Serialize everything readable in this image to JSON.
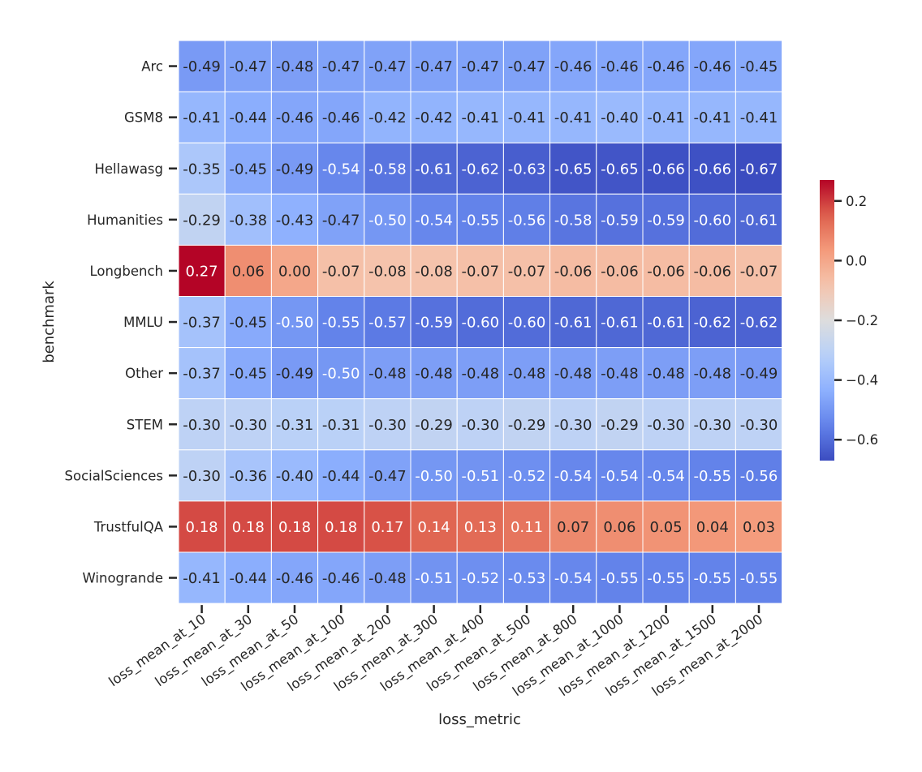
{
  "chart_data": {
    "type": "heatmap",
    "title": "",
    "xlabel": "loss_metric",
    "ylabel": "benchmark",
    "x": [
      "loss_mean_at_10",
      "loss_mean_at_30",
      "loss_mean_at_50",
      "loss_mean_at_100",
      "loss_mean_at_200",
      "loss_mean_at_300",
      "loss_mean_at_400",
      "loss_mean_at_500",
      "loss_mean_at_800",
      "loss_mean_at_1000",
      "loss_mean_at_1200",
      "loss_mean_at_1500",
      "loss_mean_at_2000"
    ],
    "y": [
      "Arc",
      "GSM8",
      "Hellawasg",
      "Humanities",
      "Longbench",
      "MMLU",
      "Other",
      "STEM",
      "SocialSciences",
      "TrustfulQA",
      "Winogrande"
    ],
    "values": [
      [
        -0.49,
        -0.47,
        -0.48,
        -0.47,
        -0.47,
        -0.47,
        -0.47,
        -0.47,
        -0.46,
        -0.46,
        -0.46,
        -0.46,
        -0.45
      ],
      [
        -0.41,
        -0.44,
        -0.46,
        -0.46,
        -0.42,
        -0.42,
        -0.41,
        -0.41,
        -0.41,
        -0.4,
        -0.41,
        -0.41,
        -0.41
      ],
      [
        -0.35,
        -0.45,
        -0.49,
        -0.54,
        -0.58,
        -0.61,
        -0.62,
        -0.63,
        -0.65,
        -0.65,
        -0.66,
        -0.66,
        -0.67
      ],
      [
        -0.29,
        -0.38,
        -0.43,
        -0.47,
        -0.5,
        -0.54,
        -0.55,
        -0.56,
        -0.58,
        -0.59,
        -0.59,
        -0.6,
        -0.61
      ],
      [
        0.27,
        0.06,
        0.0,
        -0.07,
        -0.08,
        -0.08,
        -0.07,
        -0.07,
        -0.06,
        -0.06,
        -0.06,
        -0.06,
        -0.07
      ],
      [
        -0.37,
        -0.45,
        -0.5,
        -0.55,
        -0.57,
        -0.59,
        -0.6,
        -0.6,
        -0.61,
        -0.61,
        -0.61,
        -0.62,
        -0.62
      ],
      [
        -0.37,
        -0.45,
        -0.49,
        -0.5,
        -0.48,
        -0.48,
        -0.48,
        -0.48,
        -0.48,
        -0.48,
        -0.48,
        -0.48,
        -0.49
      ],
      [
        -0.3,
        -0.3,
        -0.31,
        -0.31,
        -0.3,
        -0.29,
        -0.3,
        -0.29,
        -0.3,
        -0.29,
        -0.3,
        -0.3,
        -0.3
      ],
      [
        -0.3,
        -0.36,
        -0.4,
        -0.44,
        -0.47,
        -0.5,
        -0.51,
        -0.52,
        -0.54,
        -0.54,
        -0.54,
        -0.55,
        -0.56
      ],
      [
        0.18,
        0.18,
        0.18,
        0.18,
        0.17,
        0.14,
        0.13,
        0.11,
        0.07,
        0.06,
        0.05,
        0.04,
        0.03
      ],
      [
        -0.41,
        -0.44,
        -0.46,
        -0.46,
        -0.48,
        -0.51,
        -0.52,
        -0.53,
        -0.54,
        -0.55,
        -0.55,
        -0.55,
        -0.55
      ]
    ],
    "value_range": [
      -0.67,
      0.27
    ],
    "colormap": "coolwarm",
    "colorbar_ticks": [
      0.2,
      0.0,
      -0.2,
      -0.4,
      -0.6
    ],
    "colorbar_tick_labels": [
      "0.2",
      "0.0",
      "−0.2",
      "−0.4",
      "−0.6"
    ],
    "grid": true,
    "annotate_cells": true
  }
}
